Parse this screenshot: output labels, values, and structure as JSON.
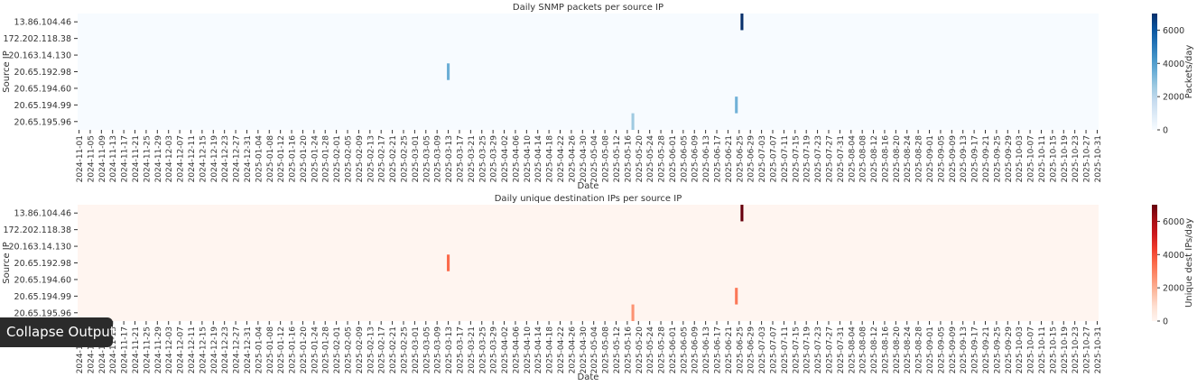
{
  "chart_data": [
    {
      "type": "heatmap",
      "title": "Daily SNMP packets per source IP",
      "xlabel": "Date",
      "ylabel": "Source IP",
      "colorbar_label": "Packets/day",
      "colormap": "Blues",
      "colormap_stops": [
        "#f7fbff",
        "#deebf7",
        "#c6dbef",
        "#9ecae1",
        "#6baed6",
        "#4292c6",
        "#2171b5",
        "#08519c",
        "#08306b"
      ],
      "color_range": [
        0,
        7000
      ],
      "colorbar_ticks": [
        "0",
        "2000",
        "4000",
        "6000"
      ],
      "rows": [
        "13.86.104.46",
        "172.202.118.38",
        "20.163.14.130",
        "20.65.192.98",
        "20.65.194.60",
        "20.65.194.99",
        "20.65.195.96"
      ],
      "date_range": [
        "2024-11-01",
        "2025-10-31"
      ],
      "cells": [
        {
          "source": "13.86.104.46",
          "date": "2025-06-26",
          "value": 7000
        },
        {
          "source": "20.65.192.98",
          "date": "2025-03-13",
          "value": 3500
        },
        {
          "source": "20.65.194.99",
          "date": "2025-06-24",
          "value": 3400
        },
        {
          "source": "20.65.195.96",
          "date": "2025-05-18",
          "value": 2600
        }
      ]
    },
    {
      "type": "heatmap",
      "title": "Daily unique destination IPs per source IP",
      "xlabel": "Date",
      "ylabel": "Source IP",
      "colorbar_label": "Unique dest IPs/day",
      "colormap": "Reds",
      "colormap_stops": [
        "#fff5f0",
        "#fee0d2",
        "#fcbba1",
        "#fc9272",
        "#fb6a4a",
        "#ef3b2c",
        "#cb181d",
        "#a50f15",
        "#67000d"
      ],
      "color_range": [
        0,
        7000
      ],
      "colorbar_ticks": [
        "0",
        "2000",
        "4000",
        "6000"
      ],
      "rows": [
        "13.86.104.46",
        "172.202.118.38",
        "20.163.14.130",
        "20.65.192.98",
        "20.65.194.60",
        "20.65.194.99",
        "20.65.195.96"
      ],
      "date_range": [
        "2024-11-01",
        "2025-10-31"
      ],
      "cells": [
        {
          "source": "13.86.104.46",
          "date": "2025-06-26",
          "value": 7000
        },
        {
          "source": "20.65.192.98",
          "date": "2025-03-13",
          "value": 3500
        },
        {
          "source": "20.65.194.99",
          "date": "2025-06-24",
          "value": 3200
        },
        {
          "source": "20.65.195.96",
          "date": "2025-05-18",
          "value": 2600
        }
      ]
    }
  ],
  "x_tick_labels": [
    "2024-11-01",
    "2024-11-05",
    "2024-11-09",
    "2024-11-13",
    "2024-11-17",
    "2024-11-21",
    "2024-11-25",
    "2024-11-29",
    "2024-12-03",
    "2024-12-07",
    "2024-12-11",
    "2024-12-15",
    "2024-12-19",
    "2024-12-23",
    "2024-12-27",
    "2024-12-31",
    "2025-01-04",
    "2025-01-08",
    "2025-01-12",
    "2025-01-16",
    "2025-01-20",
    "2025-01-24",
    "2025-01-28",
    "2025-02-01",
    "2025-02-05",
    "2025-02-09",
    "2025-02-13",
    "2025-02-17",
    "2025-02-21",
    "2025-02-25",
    "2025-03-01",
    "2025-03-05",
    "2025-03-09",
    "2025-03-13",
    "2025-03-17",
    "2025-03-21",
    "2025-03-25",
    "2025-03-29",
    "2025-04-02",
    "2025-04-06",
    "2025-04-10",
    "2025-04-14",
    "2025-04-18",
    "2025-04-22",
    "2025-04-26",
    "2025-04-30",
    "2025-05-04",
    "2025-05-08",
    "2025-05-12",
    "2025-05-16",
    "2025-05-20",
    "2025-05-24",
    "2025-05-28",
    "2025-06-01",
    "2025-06-05",
    "2025-06-09",
    "2025-06-13",
    "2025-06-17",
    "2025-06-21",
    "2025-06-25",
    "2025-06-29",
    "2025-07-03",
    "2025-07-07",
    "2025-07-11",
    "2025-07-15",
    "2025-07-19",
    "2025-07-23",
    "2025-07-27",
    "2025-07-31",
    "2025-08-04",
    "2025-08-08",
    "2025-08-12",
    "2025-08-16",
    "2025-08-20",
    "2025-08-24",
    "2025-08-28",
    "2025-09-01",
    "2025-09-05",
    "2025-09-09",
    "2025-09-13",
    "2025-09-17",
    "2025-09-21",
    "2025-09-25",
    "2025-09-29",
    "2025-10-03",
    "2025-10-07",
    "2025-10-11",
    "2025-10-15",
    "2025-10-19",
    "2025-10-23",
    "2025-10-27",
    "2025-10-31"
  ],
  "tooltip": {
    "label": "Collapse Output"
  }
}
